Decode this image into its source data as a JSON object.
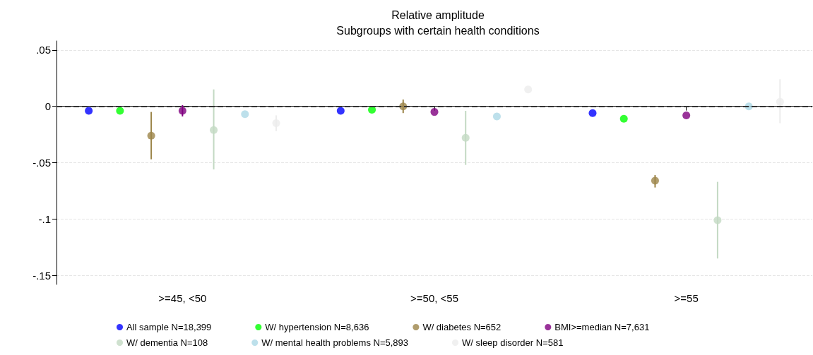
{
  "chart_data": {
    "type": "scatter",
    "title": "Relative amplitude",
    "subtitle": "Subgroups with certain health conditions",
    "categories": [
      ">=45, <50",
      ">=50, <55",
      ">=55"
    ],
    "series": [
      {
        "name": "All sample N=18,399",
        "color": "#0000ff",
        "values": [
          -0.004,
          -0.004,
          -0.006
        ]
      },
      {
        "name": "W/ hypertension N=8,636",
        "color": "#00ff00",
        "values": [
          -0.004,
          -0.003,
          -0.011
        ]
      },
      {
        "name": "W/ diabetes N=652",
        "color": "#9c8549",
        "values": [
          -0.026,
          0,
          -0.066
        ],
        "errors": [
          [
            -0.047,
            -0.005
          ],
          [
            -0.006,
            0.006
          ],
          [
            -0.072,
            -0.061
          ]
        ]
      },
      {
        "name": "BMI>=median N=7,631",
        "color": "#800080",
        "values": [
          -0.004,
          -0.005,
          -0.008
        ],
        "errors": [
          [
            -0.009,
            0.001
          ],
          null,
          null
        ]
      },
      {
        "name": "W/ dementia N=108",
        "color": "#c3d9c3",
        "values": [
          -0.021,
          -0.028,
          -0.101
        ],
        "errors": [
          [
            -0.056,
            0.015
          ],
          [
            -0.052,
            -0.004
          ],
          [
            -0.135,
            -0.067
          ]
        ]
      },
      {
        "name": "W/ mental health problems N=5,893",
        "color": "#add8e6",
        "values": [
          -0.007,
          -0.009,
          0
        ]
      },
      {
        "name": "W/ sleep disorder N=581",
        "color": "#ececec",
        "values": [
          -0.015,
          0.015,
          0.004
        ],
        "errors": [
          [
            -0.022,
            -0.008
          ],
          null,
          [
            -0.015,
            0.024
          ]
        ]
      }
    ],
    "ylim": [
      -0.158,
      0.058
    ],
    "yticks": [
      {
        "value": 0.05,
        "label": ".05"
      },
      0,
      {
        "value": -0.05,
        "label": "-.05"
      },
      {
        "value": -0.1,
        "label": "-.1"
      },
      {
        "value": -0.15,
        "label": "-.15"
      }
    ],
    "ref_lines": [
      {
        "axis": "y",
        "value": 0,
        "color": "#333333",
        "line_style": "dashed"
      }
    ],
    "grid": "y",
    "legend": "bottom",
    "marker": "circle"
  }
}
